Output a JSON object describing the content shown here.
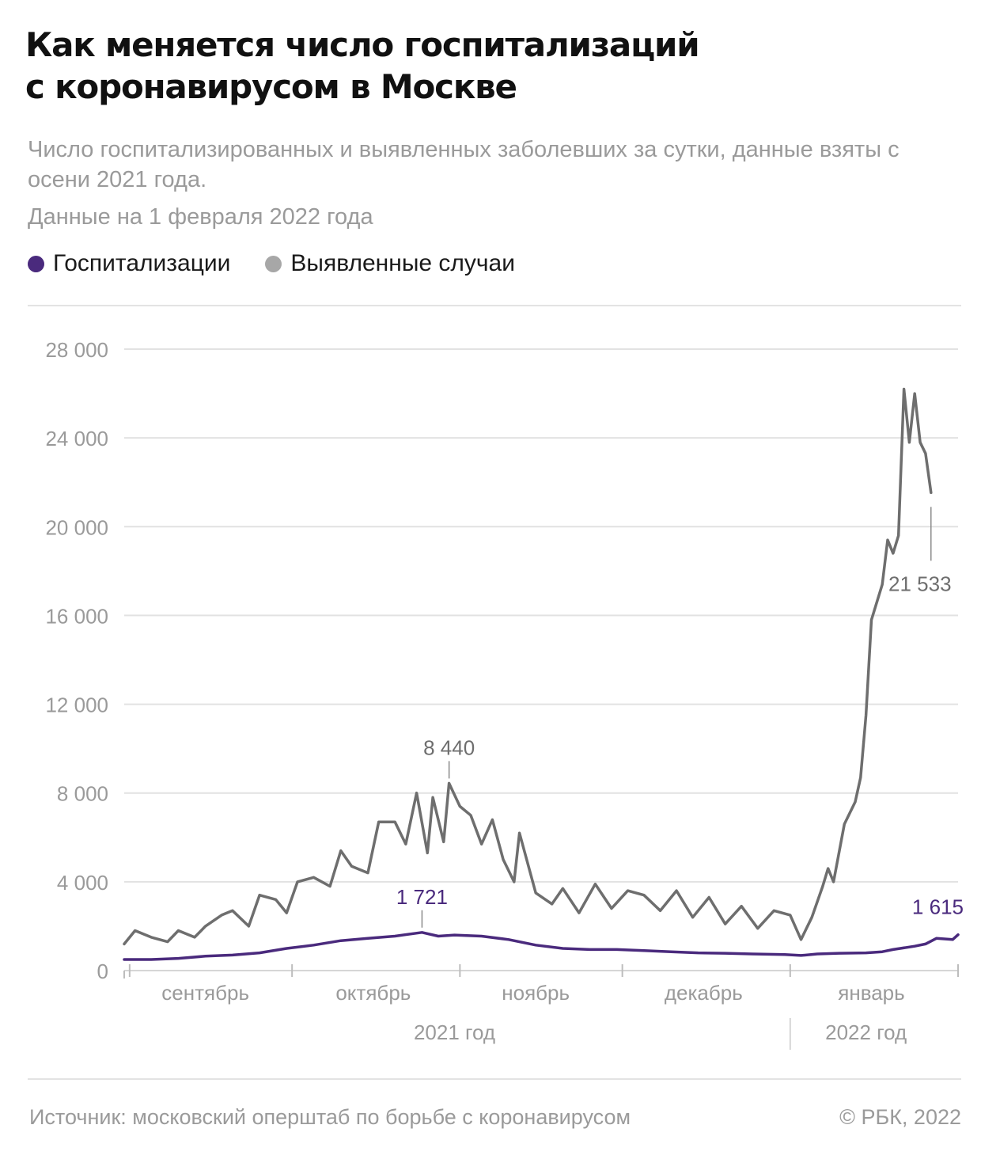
{
  "header": {
    "title_lines": [
      "Как меняется число госпитализаций",
      "с коронавирусом в Москве"
    ],
    "subtitle": "Число госпитализированных и выявленных заболевших за сутки, данные взяты с осени 2021 года.",
    "date_note": "Данные на 1 февраля 2022 года"
  },
  "footer": {
    "source": "Источник: московский оперштаб по борьбе с коронавирусом",
    "copyright": "© РБК, 2022"
  },
  "chart_data": {
    "type": "line",
    "ylim": [
      0,
      28000
    ],
    "yticks": [
      0,
      4000,
      8000,
      12000,
      16000,
      20000,
      24000,
      28000
    ],
    "ytick_labels": [
      "0",
      "4 000",
      "8 000",
      "12 000",
      "16 000",
      "20 000",
      "24 000",
      "28 000"
    ],
    "xlim": [
      "2021-08-31",
      "2022-02-01"
    ],
    "month_ticks": [
      "2021-09-01",
      "2021-10-01",
      "2021-11-01",
      "2021-12-01",
      "2022-01-01",
      "2022-02-01"
    ],
    "month_labels": [
      {
        "label": "сентябрь",
        "date": "2021-09-15"
      },
      {
        "label": "октябрь",
        "date": "2021-10-16"
      },
      {
        "label": "ноябрь",
        "date": "2021-11-15"
      },
      {
        "label": "декабрь",
        "date": "2021-12-16"
      },
      {
        "label": "январь",
        "date": "2022-01-16"
      }
    ],
    "year_labels": [
      {
        "label": "2021 год",
        "date": "2021-10-31"
      },
      {
        "label": "2022 год",
        "date": "2022-01-15"
      }
    ],
    "year_divider": "2022-01-01",
    "grid": true,
    "legend": "top-left",
    "series": [
      {
        "name": "Госпитализации",
        "color": "#4a2a7d",
        "points": [
          [
            "2021-08-31",
            500
          ],
          [
            "2021-09-05",
            500
          ],
          [
            "2021-09-10",
            550
          ],
          [
            "2021-09-15",
            650
          ],
          [
            "2021-09-20",
            700
          ],
          [
            "2021-09-25",
            800
          ],
          [
            "2021-09-30",
            1000
          ],
          [
            "2021-10-05",
            1150
          ],
          [
            "2021-10-10",
            1350
          ],
          [
            "2021-10-15",
            1450
          ],
          [
            "2021-10-20",
            1550
          ],
          [
            "2021-10-25",
            1721
          ],
          [
            "2021-10-28",
            1550
          ],
          [
            "2021-10-31",
            1600
          ],
          [
            "2021-11-05",
            1550
          ],
          [
            "2021-11-10",
            1400
          ],
          [
            "2021-11-15",
            1150
          ],
          [
            "2021-11-20",
            1000
          ],
          [
            "2021-11-25",
            950
          ],
          [
            "2021-11-30",
            950
          ],
          [
            "2021-12-05",
            900
          ],
          [
            "2021-12-10",
            850
          ],
          [
            "2021-12-15",
            800
          ],
          [
            "2021-12-20",
            780
          ],
          [
            "2021-12-25",
            750
          ],
          [
            "2021-12-31",
            720
          ],
          [
            "2022-01-03",
            680
          ],
          [
            "2022-01-06",
            750
          ],
          [
            "2022-01-10",
            780
          ],
          [
            "2022-01-15",
            800
          ],
          [
            "2022-01-18",
            850
          ],
          [
            "2022-01-20",
            950
          ],
          [
            "2022-01-24",
            1100
          ],
          [
            "2022-01-26",
            1200
          ],
          [
            "2022-01-28",
            1450
          ],
          [
            "2022-01-31",
            1400
          ],
          [
            "2022-02-01",
            1615
          ]
        ]
      },
      {
        "name": "Выявленные случаи",
        "color": "#6e6e6e",
        "points": [
          [
            "2021-08-31",
            1200
          ],
          [
            "2021-09-02",
            1800
          ],
          [
            "2021-09-05",
            1500
          ],
          [
            "2021-09-08",
            1300
          ],
          [
            "2021-09-10",
            1800
          ],
          [
            "2021-09-13",
            1500
          ],
          [
            "2021-09-15",
            2000
          ],
          [
            "2021-09-18",
            2500
          ],
          [
            "2021-09-20",
            2700
          ],
          [
            "2021-09-23",
            2000
          ],
          [
            "2021-09-25",
            3400
          ],
          [
            "2021-09-28",
            3200
          ],
          [
            "2021-09-30",
            2600
          ],
          [
            "2021-10-02",
            4000
          ],
          [
            "2021-10-05",
            4200
          ],
          [
            "2021-10-08",
            3800
          ],
          [
            "2021-10-10",
            5400
          ],
          [
            "2021-10-12",
            4700
          ],
          [
            "2021-10-15",
            4400
          ],
          [
            "2021-10-17",
            6700
          ],
          [
            "2021-10-20",
            6700
          ],
          [
            "2021-10-22",
            5700
          ],
          [
            "2021-10-24",
            8000
          ],
          [
            "2021-10-26",
            5300
          ],
          [
            "2021-10-27",
            7800
          ],
          [
            "2021-10-29",
            5800
          ],
          [
            "2021-10-30",
            8440
          ],
          [
            "2021-11-01",
            7400
          ],
          [
            "2021-11-03",
            7000
          ],
          [
            "2021-11-05",
            5700
          ],
          [
            "2021-11-07",
            6800
          ],
          [
            "2021-11-09",
            5000
          ],
          [
            "2021-11-11",
            4000
          ],
          [
            "2021-11-12",
            6200
          ],
          [
            "2021-11-15",
            3500
          ],
          [
            "2021-11-18",
            3000
          ],
          [
            "2021-11-20",
            3700
          ],
          [
            "2021-11-23",
            2600
          ],
          [
            "2021-11-26",
            3900
          ],
          [
            "2021-11-29",
            2800
          ],
          [
            "2021-12-02",
            3600
          ],
          [
            "2021-12-05",
            3400
          ],
          [
            "2021-12-08",
            2700
          ],
          [
            "2021-12-11",
            3600
          ],
          [
            "2021-12-14",
            2400
          ],
          [
            "2021-12-17",
            3300
          ],
          [
            "2021-12-20",
            2100
          ],
          [
            "2021-12-23",
            2900
          ],
          [
            "2021-12-26",
            1900
          ],
          [
            "2021-12-29",
            2700
          ],
          [
            "2022-01-01",
            2500
          ],
          [
            "2022-01-03",
            1400
          ],
          [
            "2022-01-05",
            2400
          ],
          [
            "2022-01-07",
            3800
          ],
          [
            "2022-01-08",
            4600
          ],
          [
            "2022-01-09",
            4000
          ],
          [
            "2022-01-11",
            6600
          ],
          [
            "2022-01-13",
            7600
          ],
          [
            "2022-01-14",
            8700
          ],
          [
            "2022-01-15",
            11500
          ],
          [
            "2022-01-16",
            15800
          ],
          [
            "2022-01-18",
            17400
          ],
          [
            "2022-01-19",
            19400
          ],
          [
            "2022-01-20",
            18800
          ],
          [
            "2022-01-21",
            19600
          ],
          [
            "2022-01-22",
            26200
          ],
          [
            "2022-01-23",
            23800
          ],
          [
            "2022-01-24",
            26000
          ],
          [
            "2022-01-25",
            23800
          ],
          [
            "2022-01-26",
            23300
          ],
          [
            "2022-01-27",
            21533
          ]
        ]
      }
    ],
    "annotations": [
      {
        "text": "8 440",
        "series": 1,
        "date": "2021-10-30",
        "value": 8440,
        "position": "above"
      },
      {
        "text": "21 533",
        "series": 1,
        "date": "2022-01-27",
        "value": 21533,
        "position": "below"
      },
      {
        "text": "1 721",
        "series": 0,
        "date": "2021-10-25",
        "value": 1721,
        "position": "above"
      },
      {
        "text": "1 615",
        "series": 0,
        "date": "2022-02-01",
        "value": 1615,
        "position": "above-left"
      }
    ]
  }
}
